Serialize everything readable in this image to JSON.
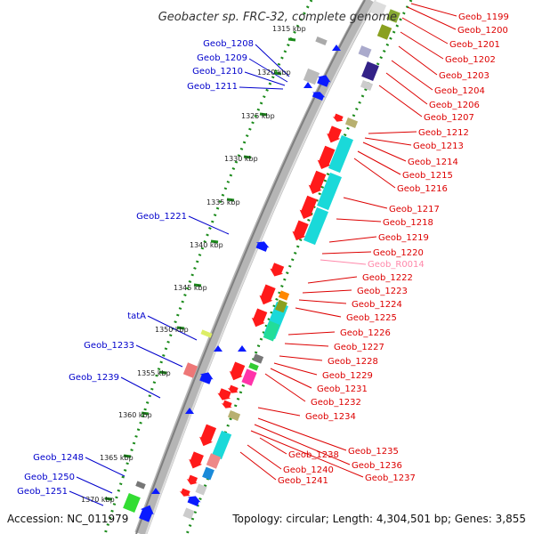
{
  "title": "Geobacter sp. FRC-32, complete genome",
  "footer": {
    "accession": "Accession: NC_011979",
    "topology": "Topology: circular; Length: 4,304,501 bp; Genes: 3,855"
  },
  "colors": {
    "positive_strand_track": "#5bb0ff",
    "negative_strand_track": "#ff2a2a",
    "gene_label_left": "#0000cc",
    "gene_label_right": "#dd0000",
    "rna_label": "#ff88aa",
    "scale_tick": "#1a8a1a",
    "backbone": "#999999"
  },
  "scale_labels": [
    "1315 kbp",
    "1320 kbp",
    "1325 kbp",
    "1330 kbp",
    "1335 kbp",
    "1340 kbp",
    "1345 kbp",
    "1350 kbp",
    "1355 kbp",
    "1360 kbp",
    "1365 kbp",
    "1370 kbp"
  ],
  "left_labels": [
    "Geob_1208",
    "Geob_1209",
    "Geob_1210",
    "Geob_1211",
    "Geob_1221",
    "tatA",
    "Geob_1233",
    "Geob_1239",
    "Geob_1248",
    "Geob_1250",
    "Geob_1251"
  ],
  "right_labels": [
    "Geob_1199",
    "Geob_1200",
    "Geob_1201",
    "Geob_1202",
    "Geob_1203",
    "Geob_1204",
    "Geob_1206",
    "Geob_1207",
    "Geob_1212",
    "Geob_1213",
    "Geob_1214",
    "Geob_1215",
    "Geob_1216",
    "Geob_1217",
    "Geob_1218",
    "Geob_1219",
    "Geob_1220",
    "Geob_R0014",
    "Geob_1222",
    "Geob_1223",
    "Geob_1224",
    "Geob_1225",
    "Geob_1226",
    "Geob_1227",
    "Geob_1228",
    "Geob_1229",
    "Geob_1231",
    "Geob_1232",
    "Geob_1234",
    "Geob_1235",
    "Geob_1236",
    "Geob_1237",
    "Geob_1238",
    "Geob_1240",
    "Geob_1241"
  ]
}
